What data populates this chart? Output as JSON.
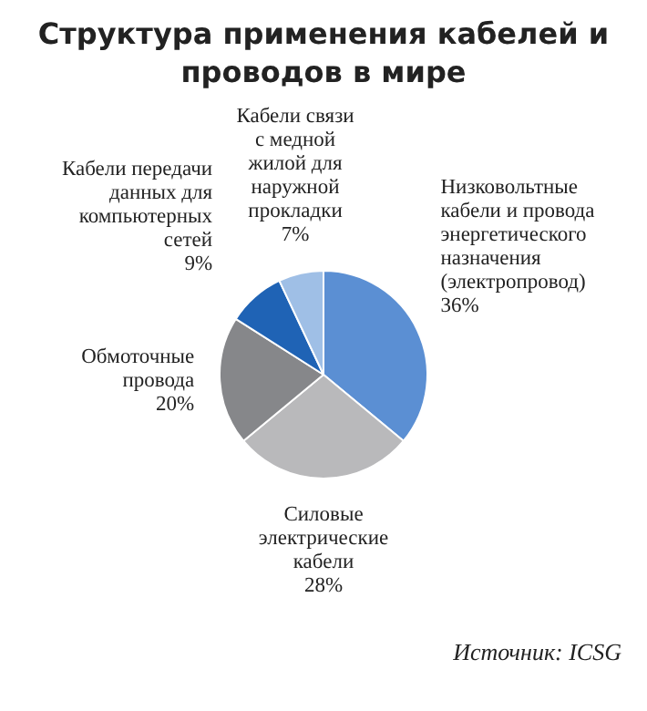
{
  "chart_data": {
    "type": "pie",
    "title": "Структура применения кабелей и проводов в мире",
    "categories": [
      "Низковольтные кабели и провода энергетического назначения (электропровод)",
      "Силовые электрические кабели",
      "Обмоточные провода",
      "Кабели передачи данных для компьютерных сетей",
      "Кабели связи с медной жилой для наружной прокладки"
    ],
    "values": [
      36,
      28,
      20,
      9,
      7
    ],
    "value_labels": [
      "36%",
      "28%",
      "20%",
      "9%",
      "7%"
    ],
    "colors": [
      "#5b8fd3",
      "#b9b9bb",
      "#86878a",
      "#1f63b5",
      "#9fbfe6"
    ],
    "legend": false,
    "annotations": [
      "Источник: ICSG"
    ]
  }
}
